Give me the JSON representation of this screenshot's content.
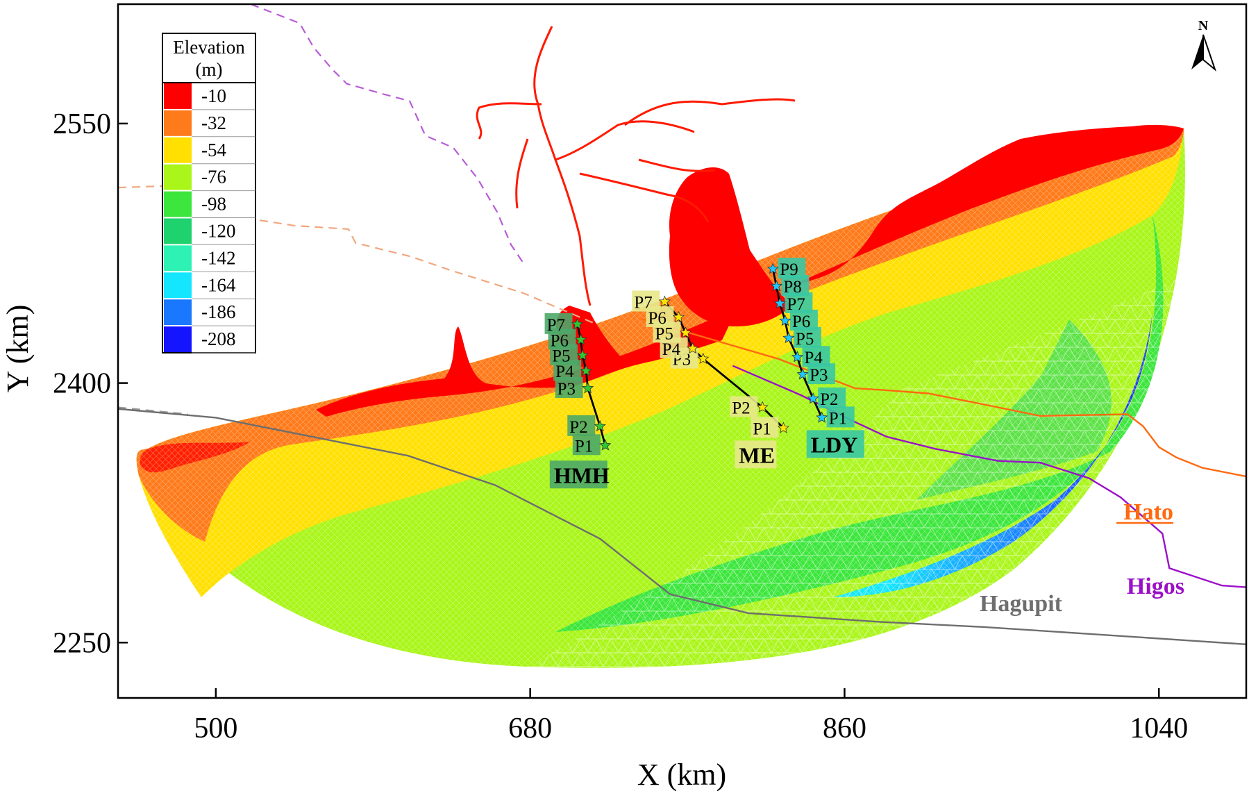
{
  "chart_data": {
    "type": "map",
    "xlabel": "X (km)",
    "ylabel": "Y (km)",
    "xlim": [
      444,
      1090
    ],
    "ylim": [
      2218,
      2619
    ],
    "x_ticks": [
      {
        "value": 500,
        "label": "500"
      },
      {
        "value": 680,
        "label": "680"
      },
      {
        "value": 860,
        "label": "860"
      },
      {
        "value": 1040,
        "label": "1040"
      }
    ],
    "y_ticks": [
      {
        "value": 2250,
        "label": "2250"
      },
      {
        "value": 2400,
        "label": "2400"
      },
      {
        "value": 2550,
        "label": "2550"
      }
    ],
    "north_arrow": "N",
    "legend": {
      "title_line1": "Elevation",
      "title_line2": "(m)",
      "entries": [
        {
          "label": "-10",
          "color": "#ff0000"
        },
        {
          "label": "-32",
          "color": "#ff7a1a"
        },
        {
          "label": "-54",
          "color": "#ffe000"
        },
        {
          "label": "-76",
          "color": "#aaf51a"
        },
        {
          "label": "-98",
          "color": "#3ce63c"
        },
        {
          "label": "-120",
          "color": "#1ed26e"
        },
        {
          "label": "-142",
          "color": "#2ef2b4"
        },
        {
          "label": "-164",
          "color": "#14e6ff"
        },
        {
          "label": "-186",
          "color": "#1a78ff"
        },
        {
          "label": "-208",
          "color": "#1414ff"
        }
      ]
    },
    "tracks": [
      {
        "name": "Hato",
        "color": "#ff6a10",
        "points": [
          [
            744,
            2437
          ],
          [
            822,
            2414
          ],
          [
            866,
            2397
          ],
          [
            882,
            2396
          ],
          [
            908,
            2394
          ],
          [
            938,
            2388
          ],
          [
            972,
            2381
          ],
          [
            1022,
            2382
          ],
          [
            1031,
            2375
          ],
          [
            1040,
            2363
          ],
          [
            1050,
            2357
          ],
          [
            1065,
            2351
          ],
          [
            1090,
            2346
          ]
        ]
      },
      {
        "name": "Higos",
        "color": "#9a10c8",
        "points": [
          [
            796,
            2410
          ],
          [
            835,
            2393
          ],
          [
            865,
            2378
          ],
          [
            884,
            2369
          ],
          [
            912,
            2362
          ],
          [
            948,
            2355
          ],
          [
            972,
            2354
          ],
          [
            1000,
            2345
          ],
          [
            1018,
            2334
          ],
          [
            1042,
            2313
          ],
          [
            1046,
            2293
          ],
          [
            1076,
            2283
          ],
          [
            1090,
            2282
          ]
        ]
      },
      {
        "name": "Hagupit",
        "color": "#6e6e6e",
        "points": [
          [
            434,
            2386
          ],
          [
            500,
            2380
          ],
          [
            610,
            2358
          ],
          [
            660,
            2341
          ],
          [
            720,
            2310
          ],
          [
            760,
            2278
          ],
          [
            805,
            2267
          ],
          [
            880,
            2262
          ],
          [
            940,
            2259
          ],
          [
            1000,
            2255
          ],
          [
            1060,
            2251
          ],
          [
            1090,
            2249
          ]
        ]
      }
    ],
    "dashed_paths": [
      {
        "color": "#b85cd8",
        "points": [
          [
            520,
            2619
          ],
          [
            548,
            2608
          ],
          [
            556,
            2594
          ],
          [
            567,
            2581
          ],
          [
            575,
            2573
          ],
          [
            596,
            2567
          ],
          [
            611,
            2563
          ],
          [
            620,
            2543
          ],
          [
            636,
            2536
          ],
          [
            650,
            2518
          ],
          [
            661,
            2499
          ],
          [
            669,
            2480
          ],
          [
            677,
            2468
          ]
        ]
      },
      {
        "color": "#f0a880",
        "points": [
          [
            444,
            2513
          ],
          [
            474,
            2514
          ],
          [
            480,
            2505
          ],
          [
            494,
            2499
          ],
          [
            545,
            2491
          ],
          [
            576,
            2489
          ],
          [
            580,
            2481
          ],
          [
            612,
            2473
          ],
          [
            635,
            2465
          ],
          [
            676,
            2452
          ],
          [
            718,
            2434
          ]
        ]
      },
      {
        "color": "#9a9a9a",
        "points": [
          [
            444,
            2386
          ],
          [
            484,
            2382
          ]
        ]
      }
    ],
    "transects": [
      {
        "name": "HMH",
        "line_color": "#000000",
        "star_color": "#2ec830",
        "label_bg": "#4ca868",
        "points": [
          {
            "label": "P1",
            "x": 723,
            "y": 2364
          },
          {
            "label": "P2",
            "x": 720,
            "y": 2375
          },
          {
            "label": "P3",
            "x": 713,
            "y": 2397
          },
          {
            "label": "P4",
            "x": 712,
            "y": 2407
          },
          {
            "label": "P5",
            "x": 710,
            "y": 2416
          },
          {
            "label": "P6",
            "x": 709,
            "y": 2425
          },
          {
            "label": "P7",
            "x": 707,
            "y": 2434
          }
        ]
      },
      {
        "name": "ME",
        "line_color": "#000000",
        "star_color": "#ffe600",
        "label_bg": "#e8e88a",
        "points": [
          {
            "label": "P1",
            "x": 825,
            "y": 2374
          },
          {
            "label": "P2",
            "x": 813,
            "y": 2386
          },
          {
            "label": "P3",
            "x": 779,
            "y": 2414
          },
          {
            "label": "P4",
            "x": 773,
            "y": 2420
          },
          {
            "label": "P5",
            "x": 769,
            "y": 2429
          },
          {
            "label": "P6",
            "x": 765,
            "y": 2438
          },
          {
            "label": "P7",
            "x": 757,
            "y": 2447
          }
        ]
      },
      {
        "name": "LDY",
        "line_color": "#000000",
        "star_color": "#1ec8ff",
        "label_bg": "#38c8a4",
        "points": [
          {
            "label": "P1",
            "x": 847,
            "y": 2380
          },
          {
            "label": "P2",
            "x": 842,
            "y": 2391
          },
          {
            "label": "P3",
            "x": 836,
            "y": 2405
          },
          {
            "label": "P4",
            "x": 833,
            "y": 2415
          },
          {
            "label": "P5",
            "x": 828,
            "y": 2426
          },
          {
            "label": "P6",
            "x": 826,
            "y": 2436
          },
          {
            "label": "P7",
            "x": 823,
            "y": 2446
          },
          {
            "label": "P8",
            "x": 821,
            "y": 2456
          },
          {
            "label": "P9",
            "x": 819,
            "y": 2466
          }
        ]
      }
    ]
  }
}
